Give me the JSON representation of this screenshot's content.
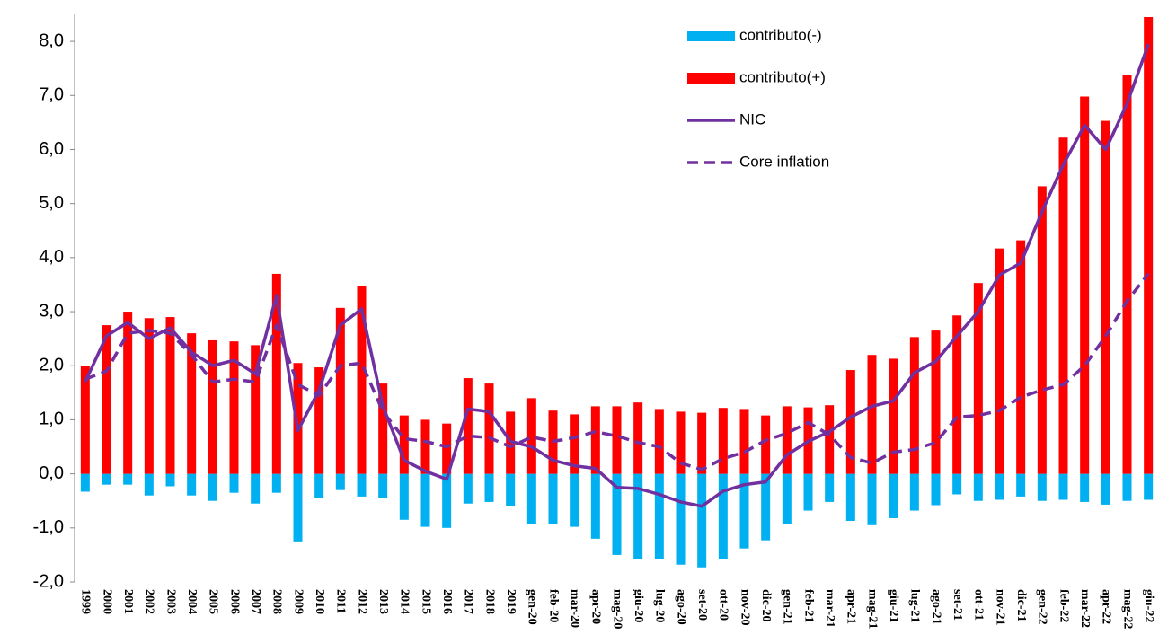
{
  "chart_data": {
    "type": "bar-line",
    "categories": [
      "1999",
      "2000",
      "2001",
      "2002",
      "2003",
      "2004",
      "2005",
      "2006",
      "2007",
      "2008",
      "2009",
      "2010",
      "2011",
      "2012",
      "2013",
      "2014",
      "2015",
      "2016",
      "2017",
      "2018",
      "2019",
      "gen-20",
      "feb-20",
      "mar-20",
      "apr-20",
      "mag-20",
      "giu-20",
      "lug-20",
      "ago-20",
      "set-20",
      "ott-20",
      "nov-20",
      "dic-20",
      "gen-21",
      "feb-21",
      "mar-21",
      "apr-21",
      "mag-21",
      "giu-21",
      "lug-21",
      "ago-21",
      "set-21",
      "ott-21",
      "nov-21",
      "dic-21",
      "gen-22",
      "feb-22",
      "mar-22",
      "apr-22",
      "mag-22",
      "giu-22"
    ],
    "series": [
      {
        "name": "contributo(-)",
        "color": "#00b0f0",
        "kind": "bar",
        "values": [
          -0.33,
          -0.2,
          -0.2,
          -0.4,
          -0.23,
          -0.4,
          -0.5,
          -0.35,
          -0.55,
          -0.35,
          -1.25,
          -0.45,
          -0.3,
          -0.42,
          -0.45,
          -0.85,
          -0.98,
          -1.0,
          -0.55,
          -0.52,
          -0.6,
          -0.92,
          -0.93,
          -0.98,
          -1.2,
          -1.5,
          -1.58,
          -1.57,
          -1.68,
          -1.73,
          -1.57,
          -1.38,
          -1.23,
          -0.92,
          -0.68,
          -0.52,
          -0.87,
          -0.95,
          -0.82,
          -0.68,
          -0.58,
          -0.38,
          -0.5,
          -0.48,
          -0.42,
          -0.5,
          -0.48,
          -0.52,
          -0.57,
          -0.5,
          -0.48
        ]
      },
      {
        "name": "contributo(+)",
        "color": "#ff0000",
        "kind": "bar",
        "values": [
          2.0,
          2.75,
          3.0,
          2.88,
          2.9,
          2.6,
          2.47,
          2.45,
          2.38,
          3.7,
          2.05,
          1.97,
          3.07,
          3.47,
          1.67,
          1.08,
          1.0,
          0.93,
          1.77,
          1.67,
          1.15,
          1.4,
          1.17,
          1.1,
          1.25,
          1.25,
          1.32,
          1.2,
          1.15,
          1.13,
          1.22,
          1.2,
          1.08,
          1.25,
          1.23,
          1.27,
          1.92,
          2.2,
          2.13,
          2.53,
          2.65,
          2.93,
          3.53,
          4.17,
          4.32,
          5.32,
          6.22,
          6.98,
          6.53,
          7.37,
          8.45
        ]
      },
      {
        "name": "NIC",
        "color": "#7030a0",
        "kind": "line",
        "dash": false,
        "values": [
          1.7,
          2.55,
          2.8,
          2.5,
          2.7,
          2.25,
          2.0,
          2.1,
          1.85,
          3.3,
          0.8,
          1.55,
          2.75,
          3.05,
          1.25,
          0.25,
          0.05,
          -0.1,
          1.2,
          1.15,
          0.6,
          0.5,
          0.25,
          0.15,
          0.1,
          -0.25,
          -0.27,
          -0.38,
          -0.52,
          -0.6,
          -0.32,
          -0.2,
          -0.15,
          0.35,
          0.6,
          0.78,
          1.05,
          1.25,
          1.35,
          1.87,
          2.08,
          2.55,
          3.0,
          3.68,
          3.9,
          4.85,
          5.72,
          6.45,
          6.0,
          6.85,
          7.95
        ]
      },
      {
        "name": "Core inflation",
        "color": "#7030a0",
        "kind": "line",
        "dash": true,
        "values": [
          1.75,
          1.9,
          2.6,
          2.65,
          2.6,
          2.2,
          1.7,
          1.75,
          1.7,
          2.75,
          1.65,
          1.45,
          2.0,
          2.05,
          1.15,
          0.65,
          0.6,
          0.5,
          0.7,
          0.67,
          0.5,
          0.68,
          0.6,
          0.67,
          0.78,
          0.7,
          0.58,
          0.5,
          0.2,
          0.08,
          0.28,
          0.4,
          0.62,
          0.75,
          0.95,
          0.72,
          0.3,
          0.2,
          0.4,
          0.45,
          0.58,
          1.05,
          1.08,
          1.17,
          1.42,
          1.55,
          1.65,
          2.0,
          2.55,
          3.2,
          3.7
        ]
      }
    ],
    "ylim": [
      -2,
      8.5
    ],
    "yticks": [
      {
        "value": -2,
        "label": "-2,0"
      },
      {
        "value": -1,
        "label": "-1,0"
      },
      {
        "value": 0,
        "label": "0,0"
      },
      {
        "value": 1,
        "label": "1,0"
      },
      {
        "value": 2,
        "label": "2,0"
      },
      {
        "value": 3,
        "label": "3,0"
      },
      {
        "value": 4,
        "label": "4,0"
      },
      {
        "value": 5,
        "label": "5,0"
      },
      {
        "value": 6,
        "label": "6,0"
      },
      {
        "value": 7,
        "label": "7,0"
      },
      {
        "value": 8,
        "label": "8,0"
      }
    ],
    "grid": false
  }
}
